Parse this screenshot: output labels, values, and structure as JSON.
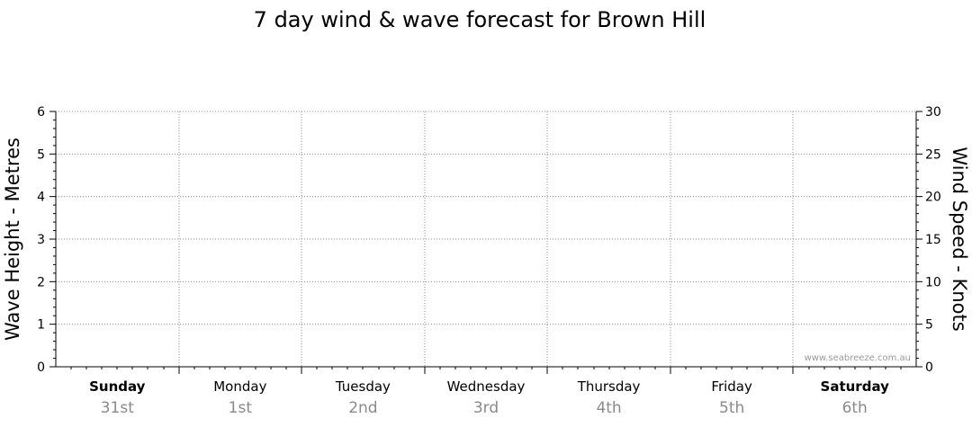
{
  "chart_data": {
    "type": "line",
    "title": "7 day wind & wave forecast for Brown Hill",
    "ylabel_left": "Wave Height - Metres",
    "ylabel_right": "Wind Speed - Knots",
    "ylim_left": [
      0,
      6
    ],
    "yticks_left": [
      0,
      1,
      2,
      3,
      4,
      5,
      6
    ],
    "ylim_right": [
      0,
      30
    ],
    "yticks_right": [
      0,
      5,
      10,
      15,
      20,
      25,
      30
    ],
    "grid": true,
    "days": [
      {
        "day": "Sunday",
        "date": "31st",
        "bold": true
      },
      {
        "day": "Monday",
        "date": "1st",
        "bold": false
      },
      {
        "day": "Tuesday",
        "date": "2nd",
        "bold": false
      },
      {
        "day": "Wednesday",
        "date": "3rd",
        "bold": false
      },
      {
        "day": "Thursday",
        "date": "4th",
        "bold": false
      },
      {
        "day": "Friday",
        "date": "5th",
        "bold": false
      },
      {
        "day": "Saturday",
        "date": "6th",
        "bold": true
      }
    ],
    "series": [],
    "watermark": "www.seabreeze.com.au"
  }
}
